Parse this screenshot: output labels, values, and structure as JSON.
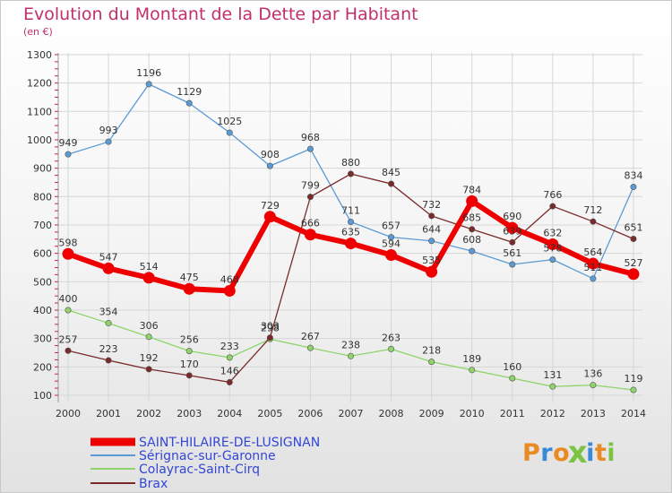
{
  "header": {
    "title": "Evolution du Montant de la Dette par Habitant",
    "unit": "(en €)"
  },
  "logo": {
    "letters": [
      "P",
      "r",
      "o",
      "x",
      "i",
      "t",
      "i"
    ],
    "colors": [
      "#e98a22",
      "#3a88d8",
      "#e98a22",
      "#7cc243",
      "#3a88d8",
      "#e98a22",
      "#7cc243"
    ]
  },
  "chart_data": {
    "type": "line",
    "title": "Evolution du Montant de la Dette par Habitant",
    "ylabel": "(en €)",
    "xlabel": "",
    "x": [
      "2000",
      "2001",
      "2002",
      "2003",
      "2004",
      "2005",
      "2006",
      "2007",
      "2008",
      "2009",
      "2010",
      "2011",
      "2012",
      "2013",
      "2014"
    ],
    "ylim": [
      100,
      1300
    ],
    "yticks": [
      "100",
      "200",
      "300",
      "400",
      "500",
      "600",
      "700",
      "800",
      "900",
      "1000",
      "1100",
      "1200",
      "1300"
    ],
    "grid": true,
    "legend_position": "bottom-left",
    "series": [
      {
        "name": "SAINT-HILAIRE-DE-LUSIGNAN",
        "color": "#ee0000",
        "values": [
          598,
          547,
          514,
          475,
          468,
          729,
          666,
          635,
          594,
          535,
          784,
          690,
          632,
          564,
          527
        ],
        "labels": [
          "598",
          "547",
          "514",
          "475",
          "468",
          "729",
          "666",
          "635",
          "594",
          "535",
          "784",
          "690",
          "632",
          "564",
          "527"
        ]
      },
      {
        "name": "Sérignac-sur-Garonne",
        "color": "#5b9bd5",
        "values": [
          949,
          993,
          1196,
          1129,
          1025,
          908,
          968,
          711,
          657,
          644,
          608,
          561,
          578,
          511,
          834
        ],
        "labels": [
          "949",
          "993",
          "1196",
          "1129",
          "1025",
          "908",
          "968",
          "711",
          "657",
          "644",
          "608",
          "561",
          "578",
          "511",
          "834"
        ]
      },
      {
        "name": "Colayrac-Saint-Cirq",
        "color": "#8ed46a",
        "values": [
          400,
          354,
          306,
          256,
          233,
          298,
          267,
          238,
          263,
          218,
          189,
          160,
          131,
          136,
          119
        ],
        "labels": [
          "400",
          "354",
          "306",
          "256",
          "233",
          "298",
          "267",
          "238",
          "263",
          "218",
          "189",
          "160",
          "131",
          "136",
          "119"
        ]
      },
      {
        "name": "Brax",
        "color": "#7a2a2a",
        "values": [
          257,
          223,
          192,
          170,
          146,
          303,
          799,
          880,
          845,
          732,
          685,
          639,
          766,
          712,
          651
        ],
        "labels": [
          "257",
          "223",
          "192",
          "170",
          "146",
          "303",
          "799",
          "880",
          "845",
          "732",
          "685",
          "639",
          "766",
          "712",
          "651"
        ]
      }
    ]
  }
}
